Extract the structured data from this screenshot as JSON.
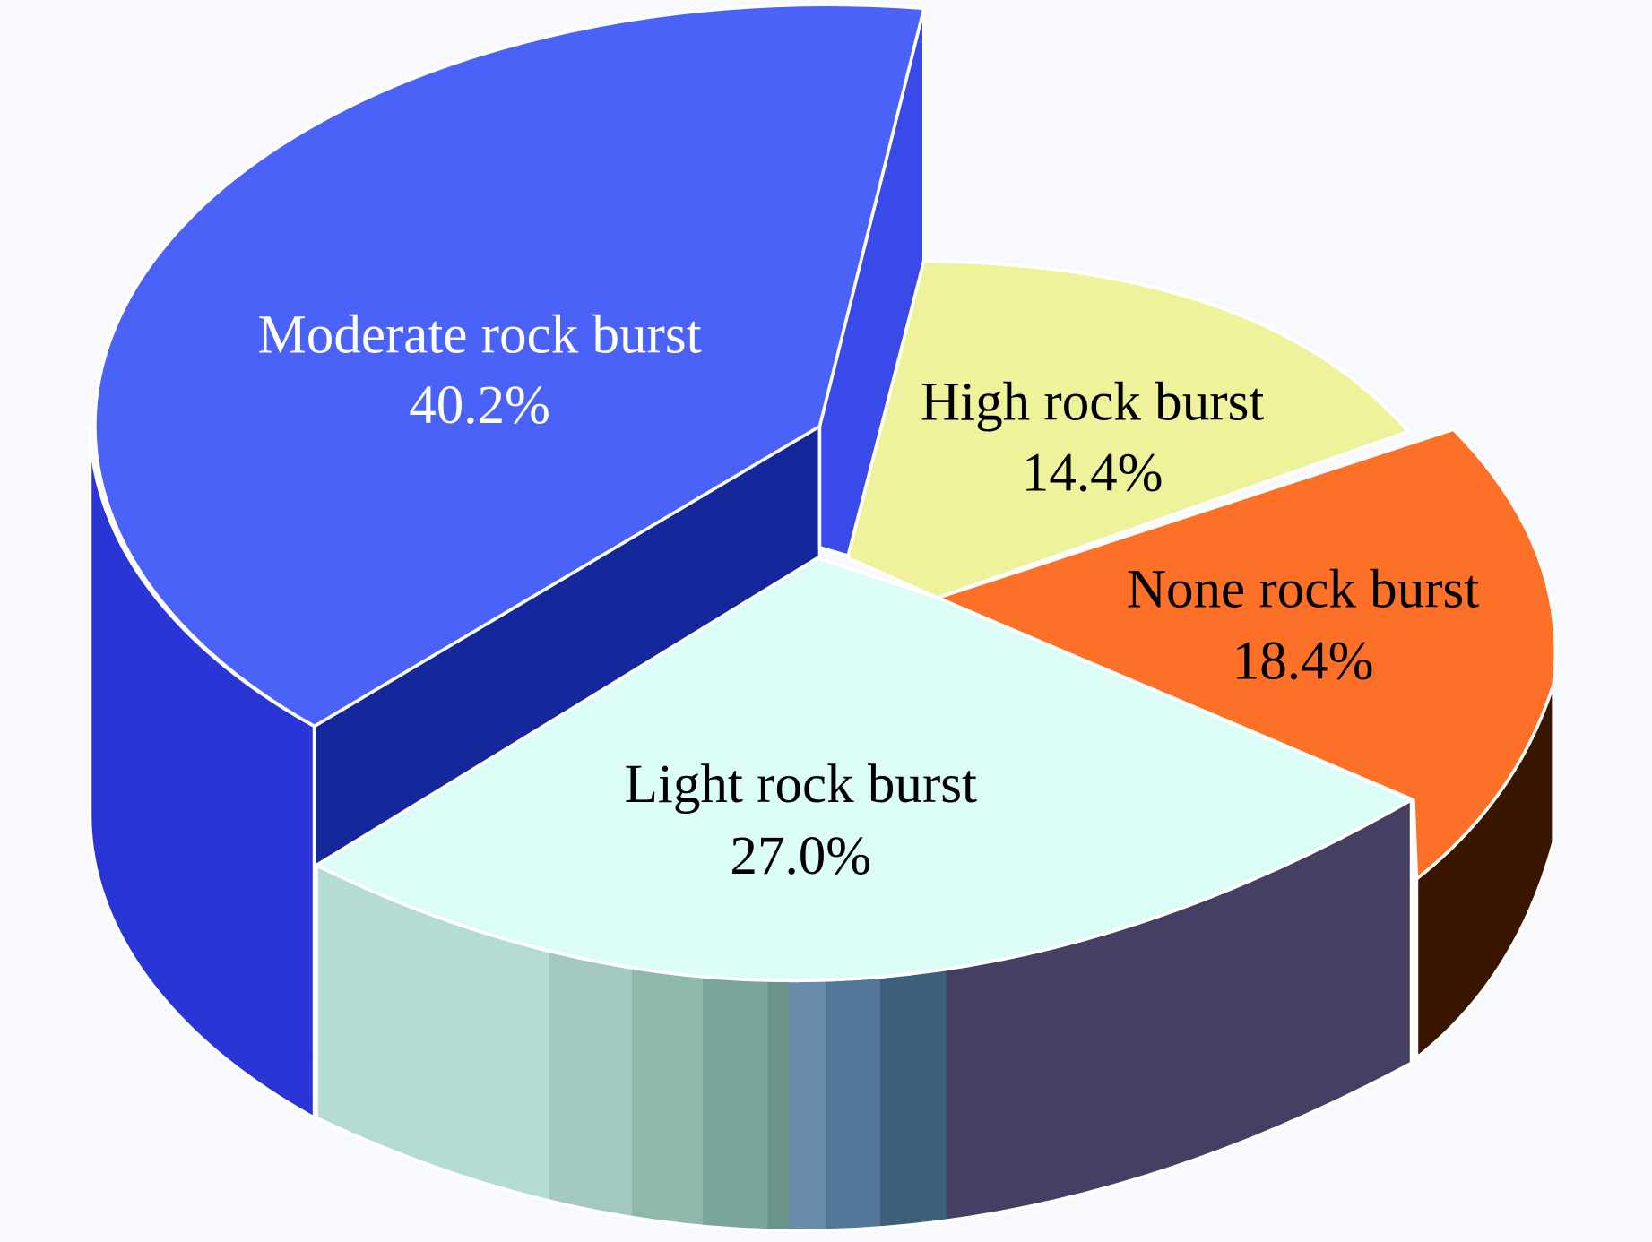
{
  "chart_data": {
    "type": "pie",
    "style": "3d-exploded",
    "title": "",
    "slices": [
      {
        "label": "Moderate rock burst",
        "value": 40.2,
        "value_label": "40.2%",
        "color": "#4a62f7",
        "label_color": "#ffffff"
      },
      {
        "label": "High rock burst",
        "value": 14.4,
        "value_label": "14.4%",
        "color": "#eef39b",
        "label_color": "#000000"
      },
      {
        "label": "None rock burst",
        "value": 18.4,
        "value_label": "18.4%",
        "color": "#fc7028",
        "label_color": "#000000"
      },
      {
        "label": "Light rock burst",
        "value": 27.0,
        "value_label": "27.0%",
        "color": "#dcfcf8",
        "label_color": "#000000"
      }
    ]
  }
}
